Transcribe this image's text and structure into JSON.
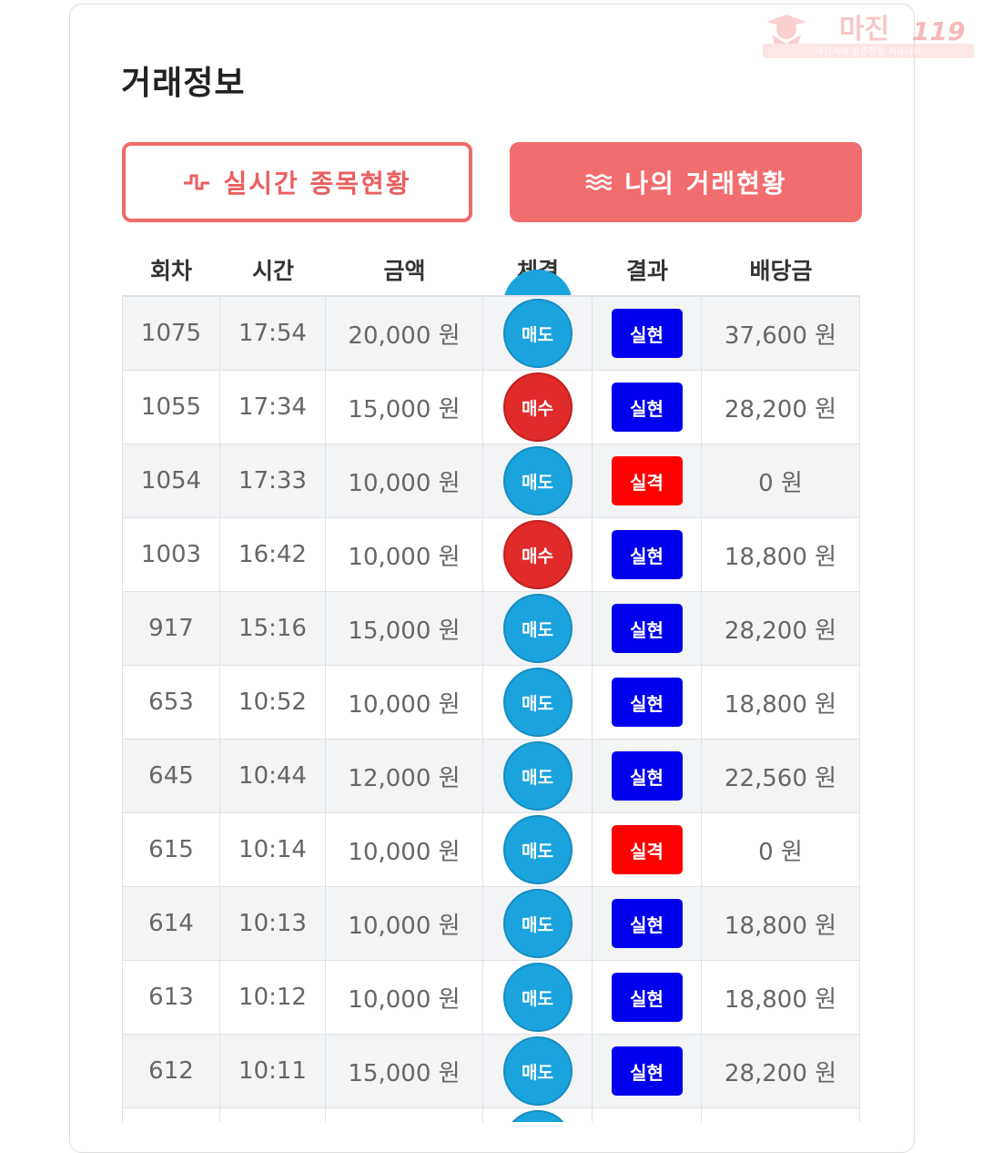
{
  "header": {
    "title": "거래정보"
  },
  "buttons": {
    "live": "실시간 종목현황",
    "mine": "나의 거래현황"
  },
  "table": {
    "columns": [
      "회차",
      "시간",
      "금액",
      "체결",
      "결과",
      "배당금"
    ],
    "rows": [
      {
        "round": "1075",
        "time": "17:54",
        "amount": "20,000 원",
        "trade": "매도",
        "result": "실현",
        "payout": "37,600 원"
      },
      {
        "round": "1055",
        "time": "17:34",
        "amount": "15,000 원",
        "trade": "매수",
        "result": "실현",
        "payout": "28,200 원"
      },
      {
        "round": "1054",
        "time": "17:33",
        "amount": "10,000 원",
        "trade": "매도",
        "result": "실격",
        "payout": "0 원"
      },
      {
        "round": "1003",
        "time": "16:42",
        "amount": "10,000 원",
        "trade": "매수",
        "result": "실현",
        "payout": "18,800 원"
      },
      {
        "round": "917",
        "time": "15:16",
        "amount": "15,000 원",
        "trade": "매도",
        "result": "실현",
        "payout": "28,200 원"
      },
      {
        "round": "653",
        "time": "10:52",
        "amount": "10,000 원",
        "trade": "매도",
        "result": "실현",
        "payout": "18,800 원"
      },
      {
        "round": "645",
        "time": "10:44",
        "amount": "12,000 원",
        "trade": "매도",
        "result": "실현",
        "payout": "22,560 원"
      },
      {
        "round": "615",
        "time": "10:14",
        "amount": "10,000 원",
        "trade": "매도",
        "result": "실격",
        "payout": "0 원"
      },
      {
        "round": "614",
        "time": "10:13",
        "amount": "10,000 원",
        "trade": "매도",
        "result": "실현",
        "payout": "18,800 원"
      },
      {
        "round": "613",
        "time": "10:12",
        "amount": "10,000 원",
        "trade": "매도",
        "result": "실현",
        "payout": "18,800 원"
      },
      {
        "round": "612",
        "time": "10:11",
        "amount": "15,000 원",
        "trade": "매도",
        "result": "실현",
        "payout": "28,200 원"
      }
    ]
  },
  "watermark": {
    "brand": "마진",
    "number": "119",
    "tagline": "마진거래 검증전문 커뮤니티"
  },
  "colors": {
    "accent": "#f26d6d",
    "sell": "#1ba3dd",
    "buy": "#e12a2a",
    "hit": "#0000ee",
    "miss": "#ff0000"
  },
  "icons": {
    "live": "pulse-icon",
    "mine": "waves-icon"
  }
}
